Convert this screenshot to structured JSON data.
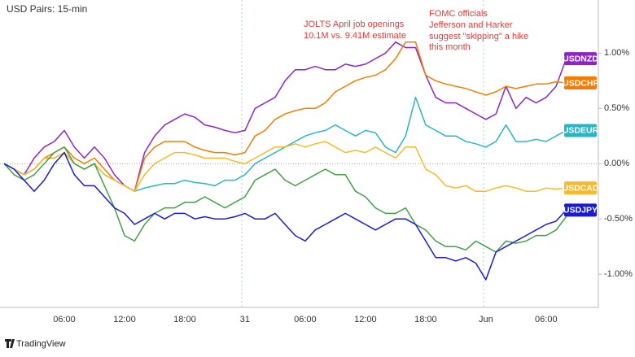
{
  "chart_data": {
    "type": "line",
    "title": "USD Pairs: 15-min",
    "source": "TradingView",
    "annotations": [
      "JOLTS April job openings",
      "10.1M vs. 9.41M estimate",
      "FOMC officials",
      "Jefferson and Harker",
      "suggest \"skipping\" a hike",
      "this month"
    ],
    "categories": [
      null,
      null,
      null,
      null,
      null,
      null,
      "06:00",
      null,
      null,
      null,
      null,
      null,
      "12:00",
      null,
      null,
      null,
      null,
      null,
      "18:00",
      null,
      null,
      null,
      null,
      null,
      "31",
      null,
      null,
      null,
      null,
      null,
      "06:00",
      null,
      null,
      null,
      null,
      null,
      "12:00",
      null,
      null,
      null,
      null,
      null,
      "18:00",
      null,
      null,
      null,
      null,
      null,
      "Jun",
      null,
      null,
      null,
      null,
      null,
      "06:00",
      null,
      null
    ],
    "ylim": [
      -1.3,
      1.48
    ],
    "yticks": [
      {
        "value": 1,
        "label": "1.00%"
      },
      {
        "value": 0.5,
        "label": "0.50%"
      },
      {
        "value": 0,
        "label": "0.00%"
      },
      {
        "value": -0.5,
        "label": "-0.50%"
      },
      {
        "value": -1,
        "label": "-1.00%"
      }
    ],
    "zero_line": true,
    "series": [
      {
        "name": "USDNZD",
        "color": "#8e24c8",
        "values": [
          0,
          -0.05,
          -0.1,
          0.05,
          0.15,
          0.2,
          0.3,
          0.15,
          0.05,
          0.15,
          0.05,
          -0.1,
          -0.2,
          -0.25,
          0.1,
          0.25,
          0.35,
          0.4,
          0.45,
          0.42,
          0.35,
          0.33,
          0.3,
          0.28,
          0.3,
          0.5,
          0.55,
          0.6,
          0.75,
          0.85,
          0.85,
          0.88,
          0.85,
          0.85,
          0.9,
          0.88,
          0.9,
          0.95,
          1.0,
          1.1,
          1.05,
          1.05,
          0.8,
          0.6,
          0.55,
          0.55,
          0.5,
          0.45,
          0.4,
          0.45,
          0.7,
          0.5,
          0.6,
          0.55,
          0.6,
          0.7,
          0.95
        ]
      },
      {
        "name": "USDCHF",
        "color": "#f57c00",
        "values": [
          0,
          -0.05,
          -0.1,
          -0.05,
          0.05,
          0.1,
          0.15,
          0.05,
          0,
          0.05,
          -0.05,
          -0.15,
          -0.2,
          -0.25,
          0.05,
          0.15,
          0.2,
          0.2,
          0.2,
          0.15,
          0.12,
          0.1,
          0.1,
          0.08,
          0.1,
          0.25,
          0.3,
          0.4,
          0.45,
          0.48,
          0.5,
          0.5,
          0.55,
          0.65,
          0.7,
          0.75,
          0.78,
          0.8,
          0.85,
          0.95,
          1.1,
          1.1,
          0.8,
          0.75,
          0.72,
          0.7,
          0.68,
          0.65,
          0.62,
          0.65,
          0.7,
          0.68,
          0.7,
          0.72,
          0.72,
          0.74,
          0.73
        ]
      },
      {
        "name": "USDEUR",
        "color": "#26b6c6",
        "values": [
          0,
          -0.05,
          -0.1,
          -0.05,
          0.05,
          0.05,
          0.1,
          0,
          -0.05,
          0,
          -0.1,
          -0.15,
          -0.2,
          -0.25,
          -0.22,
          -0.2,
          -0.18,
          -0.18,
          -0.15,
          -0.17,
          -0.18,
          -0.2,
          -0.15,
          -0.15,
          -0.1,
          0,
          0.05,
          0.1,
          0.15,
          0.2,
          0.25,
          0.28,
          0.3,
          0.35,
          0.3,
          0.25,
          0.3,
          0.28,
          0.15,
          0.1,
          0.25,
          0.6,
          0.35,
          0.3,
          0.25,
          0.25,
          0.2,
          0.18,
          0.15,
          0.2,
          0.35,
          0.2,
          0.2,
          0.22,
          0.2,
          0.25,
          0.3
        ]
      },
      {
        "name": "USDCAD",
        "color": "#f9b928",
        "values": [
          0,
          -0.05,
          -0.1,
          -0.05,
          0.05,
          0.05,
          0.1,
          0,
          -0.05,
          0,
          -0.1,
          -0.15,
          -0.2,
          -0.25,
          -0.1,
          0,
          0.05,
          0.1,
          0.1,
          0.08,
          0.05,
          0.05,
          0.05,
          0.02,
          0,
          0.05,
          0.1,
          0.15,
          0.15,
          0.18,
          0.15,
          0.18,
          0.2,
          0.15,
          0.1,
          0.12,
          0.1,
          0.15,
          0.1,
          0.05,
          0.15,
          0.15,
          -0.05,
          -0.1,
          -0.2,
          -0.22,
          -0.2,
          -0.25,
          -0.25,
          -0.22,
          -0.2,
          -0.22,
          -0.25,
          -0.25,
          -0.22,
          -0.23,
          -0.22
        ]
      },
      {
        "color": "#43a047",
        "values": [
          0,
          -0.1,
          -0.15,
          -0.1,
          0,
          0.1,
          0.15,
          0,
          -0.05,
          0,
          -0.2,
          -0.4,
          -0.65,
          -0.7,
          -0.55,
          -0.45,
          -0.4,
          -0.4,
          -0.35,
          -0.35,
          -0.3,
          -0.35,
          -0.4,
          -0.35,
          -0.3,
          -0.15,
          -0.1,
          -0.05,
          -0.15,
          -0.2,
          -0.15,
          -0.1,
          -0.05,
          -0.1,
          -0.1,
          -0.25,
          -0.3,
          -0.4,
          -0.45,
          -0.45,
          -0.4,
          -0.55,
          -0.6,
          -0.7,
          -0.75,
          -0.75,
          -0.78,
          -0.7,
          -0.75,
          -0.8,
          -0.7,
          -0.72,
          -0.7,
          -0.65,
          -0.65,
          -0.6,
          -0.48
        ]
      },
      {
        "name": "USDJPY",
        "color": "#1a1ad6",
        "values": [
          0,
          -0.05,
          -0.15,
          -0.25,
          -0.15,
          0,
          0.1,
          -0.1,
          -0.2,
          -0.2,
          -0.3,
          -0.4,
          -0.45,
          -0.55,
          -0.5,
          -0.45,
          -0.5,
          -0.45,
          -0.45,
          -0.5,
          -0.48,
          -0.5,
          -0.5,
          -0.48,
          -0.45,
          -0.5,
          -0.5,
          -0.45,
          -0.55,
          -0.65,
          -0.7,
          -0.6,
          -0.55,
          -0.5,
          -0.45,
          -0.5,
          -0.55,
          -0.6,
          -0.55,
          -0.5,
          -0.5,
          -0.55,
          -0.7,
          -0.85,
          -0.85,
          -0.88,
          -0.85,
          -0.9,
          -1.05,
          -0.8,
          -0.75,
          -0.7,
          -0.65,
          -0.6,
          -0.55,
          -0.52,
          -0.42
        ]
      }
    ]
  }
}
